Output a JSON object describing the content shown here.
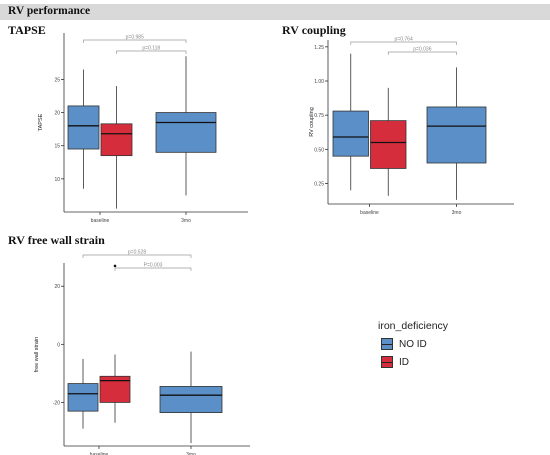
{
  "header": {
    "title": "RV performance"
  },
  "legend": {
    "title": "iron_deficiency",
    "items": [
      {
        "label": "NO ID",
        "color": "#5b8fc7"
      },
      {
        "label": "ID",
        "color": "#d62d3c"
      }
    ]
  },
  "chart_data": [
    {
      "type": "boxplot",
      "title": "TAPSE",
      "ylabel": "TAPSE",
      "xlabel": "",
      "categories": [
        "baseline",
        "3mo"
      ],
      "ylim": [
        5,
        32
      ],
      "yticks": [
        10,
        15,
        20,
        25
      ],
      "grid": false,
      "series": [
        {
          "name": "NO ID",
          "boxes": [
            {
              "category": "baseline",
              "min": 8.5,
              "q1": 14.5,
              "median": 18.0,
              "q3": 21.0,
              "max": 26.5
            },
            {
              "category": "3mo",
              "min": 7.5,
              "q1": 14.0,
              "median": 18.5,
              "q3": 20.0,
              "max": 28.5
            }
          ]
        },
        {
          "name": "ID",
          "boxes": [
            {
              "category": "baseline",
              "min": 5.5,
              "q1": 13.5,
              "median": 16.8,
              "q3": 18.3,
              "max": 24.0
            }
          ]
        }
      ],
      "annotations": [
        {
          "label": "p=0.985",
          "from": "baseline:NO ID",
          "to": "3mo"
        },
        {
          "label": "p=0.118",
          "from": "baseline:ID",
          "to": "3mo"
        }
      ]
    },
    {
      "type": "boxplot",
      "title": "RV coupling",
      "ylabel": "RV coupling",
      "xlabel": "",
      "categories": [
        "baseline",
        "3mo"
      ],
      "ylim": [
        0.1,
        1.3
      ],
      "yticks": [
        0.25,
        0.5,
        0.75,
        1.0,
        1.25
      ],
      "ytick_labels": [
        "0.25",
        "0.50",
        "0.75",
        "1.00",
        "1.25"
      ],
      "grid": false,
      "series": [
        {
          "name": "NO ID",
          "boxes": [
            {
              "category": "baseline",
              "min": 0.2,
              "q1": 0.45,
              "median": 0.59,
              "q3": 0.78,
              "max": 1.2
            },
            {
              "category": "3mo",
              "min": 0.13,
              "q1": 0.4,
              "median": 0.67,
              "q3": 0.81,
              "max": 1.1
            }
          ]
        },
        {
          "name": "ID",
          "boxes": [
            {
              "category": "baseline",
              "min": 0.16,
              "q1": 0.36,
              "median": 0.55,
              "q3": 0.71,
              "max": 0.95
            }
          ]
        }
      ],
      "annotations": [
        {
          "label": "p=0.764",
          "from": "baseline:NO ID",
          "to": "3mo"
        },
        {
          "label": "p=0.036",
          "from": "baseline:ID",
          "to": "3mo"
        }
      ]
    },
    {
      "type": "boxplot",
      "title": "RV free wall strain",
      "ylabel": "free wall strain",
      "xlabel": "",
      "categories": [
        "baseline",
        "3mo"
      ],
      "ylim": [
        -35,
        28
      ],
      "yticks": [
        -20,
        0,
        20
      ],
      "grid": false,
      "series": [
        {
          "name": "NO ID",
          "boxes": [
            {
              "category": "baseline",
              "min": -29,
              "q1": -23,
              "median": -17,
              "q3": -13.5,
              "max": -5
            },
            {
              "category": "3mo",
              "min": -34,
              "q1": -23.5,
              "median": -17.5,
              "q3": -14.5,
              "max": -2.5
            }
          ]
        },
        {
          "name": "ID",
          "boxes": [
            {
              "category": "baseline",
              "min": -27,
              "q1": -20,
              "median": -12.5,
              "q3": -11,
              "max": -3.5,
              "outliers": [
                27
              ]
            }
          ]
        }
      ],
      "annotations": [
        {
          "label": "p=0.528",
          "from": "baseline:NO ID",
          "to": "3mo"
        },
        {
          "label": "P=0.003",
          "from": "baseline:ID",
          "to": "3mo"
        }
      ]
    }
  ]
}
